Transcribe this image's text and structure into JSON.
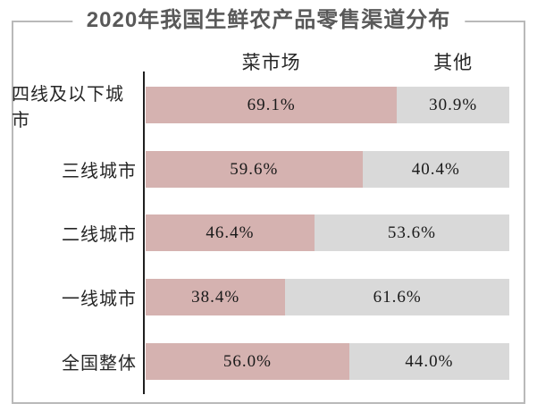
{
  "title": "2020年我国生鲜农产品零售渠道分布",
  "chart_data": {
    "type": "bar",
    "orientation": "horizontal",
    "stacked": true,
    "title": "2020年我国生鲜农产品零售渠道分布",
    "categories": [
      "四线及以下城市",
      "三线城市",
      "二线城市",
      "一线城市",
      "全国整体"
    ],
    "series": [
      {
        "name": "菜市场",
        "color": "#d5b2b0",
        "values": [
          69.1,
          59.6,
          46.4,
          38.4,
          56.0
        ],
        "labels": [
          "69.1%",
          "59.6%",
          "46.4%",
          "38.4%",
          "56.0%"
        ]
      },
      {
        "name": "其他",
        "color": "#d9d9d9",
        "values": [
          30.9,
          40.4,
          53.6,
          61.6,
          44.0
        ],
        "labels": [
          "30.9%",
          "40.4%",
          "53.6%",
          "61.6%",
          "44.0%"
        ]
      }
    ],
    "xlim": [
      0,
      100
    ],
    "legend_position": "top",
    "grid": false,
    "colors": {
      "title_text": "#595959",
      "label_text": "#262626",
      "value_text": "#1a1a1a",
      "axis_line": "#1f1f1f",
      "frame_border": "#b9b9b9",
      "background": "#ffffff"
    }
  }
}
